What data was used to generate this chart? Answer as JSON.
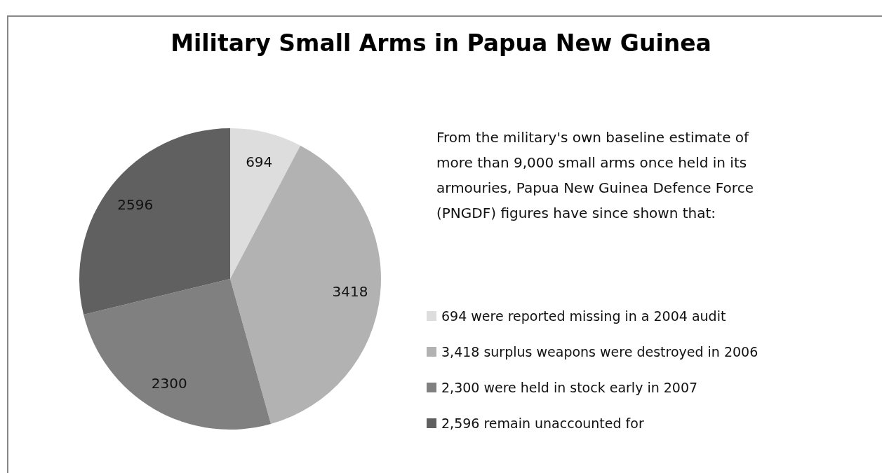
{
  "chart_data": {
    "type": "pie",
    "title": "Military Small Arms in Papua New Guinea",
    "categories": [
      "694 were reported missing in a 2004 audit",
      "3,418 surplus weapons were destroyed in 2006",
      "2,300 were held in stock early in 2007",
      "2,596 remain unaccounted for"
    ],
    "values": [
      694,
      3418,
      2300,
      2596
    ],
    "colors": [
      "#dddddd",
      "#b2b2b2",
      "#808080",
      "#606060"
    ],
    "data_labels": true,
    "legend": "right",
    "annotations": [
      "From the military's own baseline estimate of more than 9,000 small arms once held in its armouries, Papua New Guinea Defence Force (PNGDF) figures have since shown that:"
    ]
  }
}
